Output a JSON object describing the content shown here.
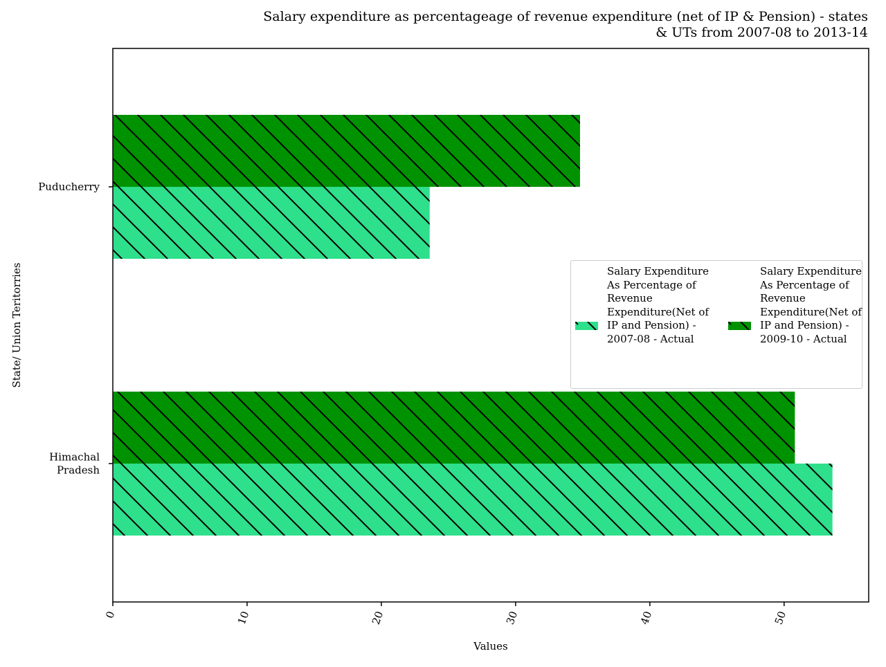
{
  "chart_data": {
    "type": "bar",
    "orientation": "horizontal",
    "title": "Salary expenditure as percentageage of revenue expenditure (net of IP & Pension) - states & UTs from 2007-08 to 2013-14",
    "title_lines": [
      "Salary expenditure as percentageage of revenue expenditure (net of IP & Pension) - states",
      "& UTs from 2007-08 to 2013-14"
    ],
    "xlabel": "Values",
    "ylabel": "State/ Union Teritorries",
    "categories": [
      "Himachal Pradesh",
      "Puducherry"
    ],
    "category_lines": [
      [
        "Himachal",
        "Pradesh"
      ],
      [
        "Puducherry"
      ]
    ],
    "series": [
      {
        "name": "Salary Expenditure As Percentage of Revenue Expenditure(Net of IP and Pension) - 2007-08 - Actual",
        "color": "#2edf8b",
        "values": [
          53.6,
          23.6
        ]
      },
      {
        "name": "Salary Expenditure As Percentage of Revenue Expenditure(Net of IP and Pension) - 2009-10 - Actual",
        "color": "#009200",
        "values": [
          50.8,
          34.8
        ]
      }
    ],
    "xlim": [
      0,
      56.3
    ],
    "xticks": [
      0,
      10,
      20,
      30,
      40,
      50
    ],
    "grid": false,
    "hatch": "diagonal",
    "legend_position": "center-right",
    "legend_columns": 2
  }
}
